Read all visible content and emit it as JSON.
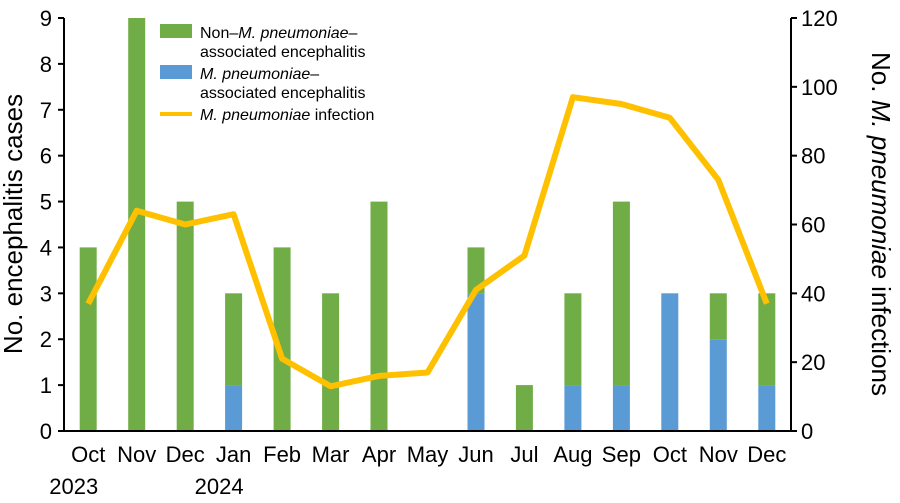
{
  "chart_data": {
    "type": "bar",
    "categories": [
      "Oct",
      "Nov",
      "Dec",
      "Jan",
      "Feb",
      "Mar",
      "Apr",
      "May",
      "Jun",
      "Jul",
      "Aug",
      "Sep",
      "Oct",
      "Nov",
      "Dec"
    ],
    "year_labels": [
      {
        "label": "2023",
        "start_index": 0
      },
      {
        "label": "2024",
        "start_index": 3
      }
    ],
    "series": [
      {
        "name": "M. pneumoniae–associated encephalitis",
        "legend_lines": [
          [
            {
              "text": "M. pneumoniae",
              "italic": true
            },
            {
              "text": "–",
              "italic": false
            }
          ],
          [
            {
              "text": "associated encephalitis",
              "italic": false
            }
          ]
        ],
        "kind": "bar",
        "axis": "left",
        "color": "#5b9bd5",
        "values": [
          0,
          0,
          0,
          1,
          0,
          0,
          0,
          0,
          3,
          0,
          1,
          1,
          3,
          2,
          1
        ]
      },
      {
        "name": "Non–M. pneumoniae–associated encephalitis",
        "legend_lines": [
          [
            {
              "text": "Non–",
              "italic": false
            },
            {
              "text": "M. pneumoniae",
              "italic": true
            },
            {
              "text": "–",
              "italic": false
            }
          ],
          [
            {
              "text": "associated encephalitis",
              "italic": false
            }
          ]
        ],
        "kind": "bar",
        "axis": "left",
        "color": "#70ad47",
        "values": [
          4,
          9,
          5,
          2,
          4,
          3,
          5,
          0,
          1,
          1,
          2,
          4,
          0,
          1,
          2
        ]
      },
      {
        "name": "M. pneumoniae infection",
        "legend_lines": [
          [
            {
              "text": "M. pneumoniae",
              "italic": true
            },
            {
              "text": " infection",
              "italic": false
            }
          ]
        ],
        "kind": "line",
        "axis": "right",
        "color": "#ffc000",
        "values": [
          37,
          64,
          60,
          63,
          21,
          13,
          16,
          17,
          41,
          51,
          97,
          95,
          91,
          73,
          37
        ]
      }
    ],
    "stacked": true,
    "legend_order": [
      1,
      0,
      2
    ],
    "ylabel": [
      {
        "text": "No. encephalitis cases",
        "italic": false
      }
    ],
    "ylim": [
      0,
      9
    ],
    "yticks": [
      0,
      1,
      2,
      3,
      4,
      5,
      6,
      7,
      8,
      9
    ],
    "y2label": [
      {
        "text": "No. ",
        "italic": false
      },
      {
        "text": "M. pneumoniae",
        "italic": true
      },
      {
        "text": " infections",
        "italic": false
      }
    ],
    "y2lim": [
      0,
      120
    ],
    "y2ticks": [
      0,
      20,
      40,
      60,
      80,
      100,
      120
    ],
    "grid": false,
    "legend_position": "top-left"
  }
}
